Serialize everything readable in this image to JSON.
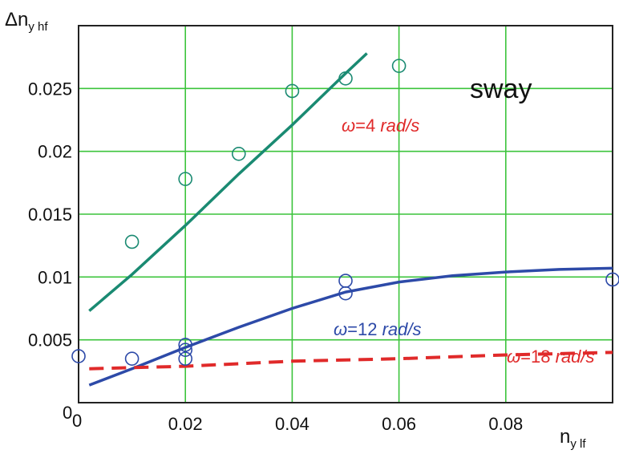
{
  "chart_data": {
    "type": "scatter",
    "title": "",
    "panel_label": "sway",
    "xlabel": {
      "main": "n",
      "sub": "y lf"
    },
    "ylabel": {
      "main": "Δn",
      "sub": "y hf"
    },
    "xlim": [
      0,
      0.1
    ],
    "ylim": [
      0,
      0.03
    ],
    "origin_labels": {
      "x": "0",
      "y": "0"
    },
    "x_ticks": [
      {
        "value": 0.02,
        "label": "0.02"
      },
      {
        "value": 0.04,
        "label": "0.04"
      },
      {
        "value": 0.06,
        "label": "0.06"
      },
      {
        "value": 0.08,
        "label": "0.08"
      }
    ],
    "y_ticks": [
      {
        "value": 0.005,
        "label": "0.005"
      },
      {
        "value": 0.01,
        "label": "0.01"
      },
      {
        "value": 0.015,
        "label": "0.015"
      },
      {
        "value": 0.02,
        "label": "0.02"
      },
      {
        "value": 0.025,
        "label": "0.025"
      }
    ],
    "grid": true,
    "series": [
      {
        "kind": "points",
        "color": "#1a8a72",
        "points": [
          [
            0.01,
            0.0128
          ],
          [
            0.02,
            0.0178
          ],
          [
            0.03,
            0.0198
          ],
          [
            0.04,
            0.0248
          ],
          [
            0.05,
            0.0258
          ],
          [
            0.06,
            0.0268
          ]
        ]
      },
      {
        "kind": "points",
        "color": "#2d4aa8",
        "points": [
          [
            0.0,
            0.0037
          ],
          [
            0.01,
            0.0035
          ],
          [
            0.02,
            0.0035
          ],
          [
            0.02,
            0.0042
          ],
          [
            0.02,
            0.0046
          ],
          [
            0.05,
            0.0087
          ],
          [
            0.05,
            0.0097
          ],
          [
            0.1,
            0.0098
          ]
        ]
      },
      {
        "kind": "line",
        "label": "ω=4 rad/s",
        "color": "#1a8a72",
        "dash": "solid",
        "points": [
          [
            0.002,
            0.0073
          ],
          [
            0.01,
            0.0102
          ],
          [
            0.02,
            0.0141
          ],
          [
            0.03,
            0.0182
          ],
          [
            0.04,
            0.0221
          ],
          [
            0.05,
            0.0262
          ],
          [
            0.054,
            0.0278
          ]
        ]
      },
      {
        "kind": "line",
        "label": "ω=12 rad/s",
        "color": "#2d4aa8",
        "dash": "solid",
        "points": [
          [
            0.002,
            0.0014
          ],
          [
            0.01,
            0.0027
          ],
          [
            0.02,
            0.0044
          ],
          [
            0.03,
            0.006
          ],
          [
            0.04,
            0.0075
          ],
          [
            0.05,
            0.0088
          ],
          [
            0.06,
            0.0096
          ],
          [
            0.07,
            0.0101
          ],
          [
            0.08,
            0.0104
          ],
          [
            0.09,
            0.0106
          ],
          [
            0.1,
            0.0107
          ]
        ]
      },
      {
        "kind": "line",
        "label": "ω=18 rad/s",
        "color": "#e02a2a",
        "dash": "dashed",
        "points": [
          [
            0.002,
            0.0027
          ],
          [
            0.02,
            0.0029
          ],
          [
            0.04,
            0.0033
          ],
          [
            0.06,
            0.0035
          ],
          [
            0.08,
            0.0038
          ],
          [
            0.1,
            0.004
          ]
        ]
      }
    ],
    "annotations": [
      {
        "omega": "ω",
        "text": "=4 ",
        "unit": "rad/s",
        "color": "#e02a2a",
        "near": "upper-middle"
      },
      {
        "omega": "ω",
        "text": "=12 ",
        "unit": "rad/s",
        "color": "#2d4aa8",
        "near": "blue-curve"
      },
      {
        "omega": "ω",
        "text": "=18 ",
        "unit": "rad/s",
        "color": "#e02a2a",
        "near": "right-edge"
      }
    ],
    "colors": {
      "grid": "#3cc43c",
      "frame": "#222222",
      "marker_edge_teal": "#1a8a72",
      "marker_edge_blue": "#2d4aa8"
    }
  }
}
